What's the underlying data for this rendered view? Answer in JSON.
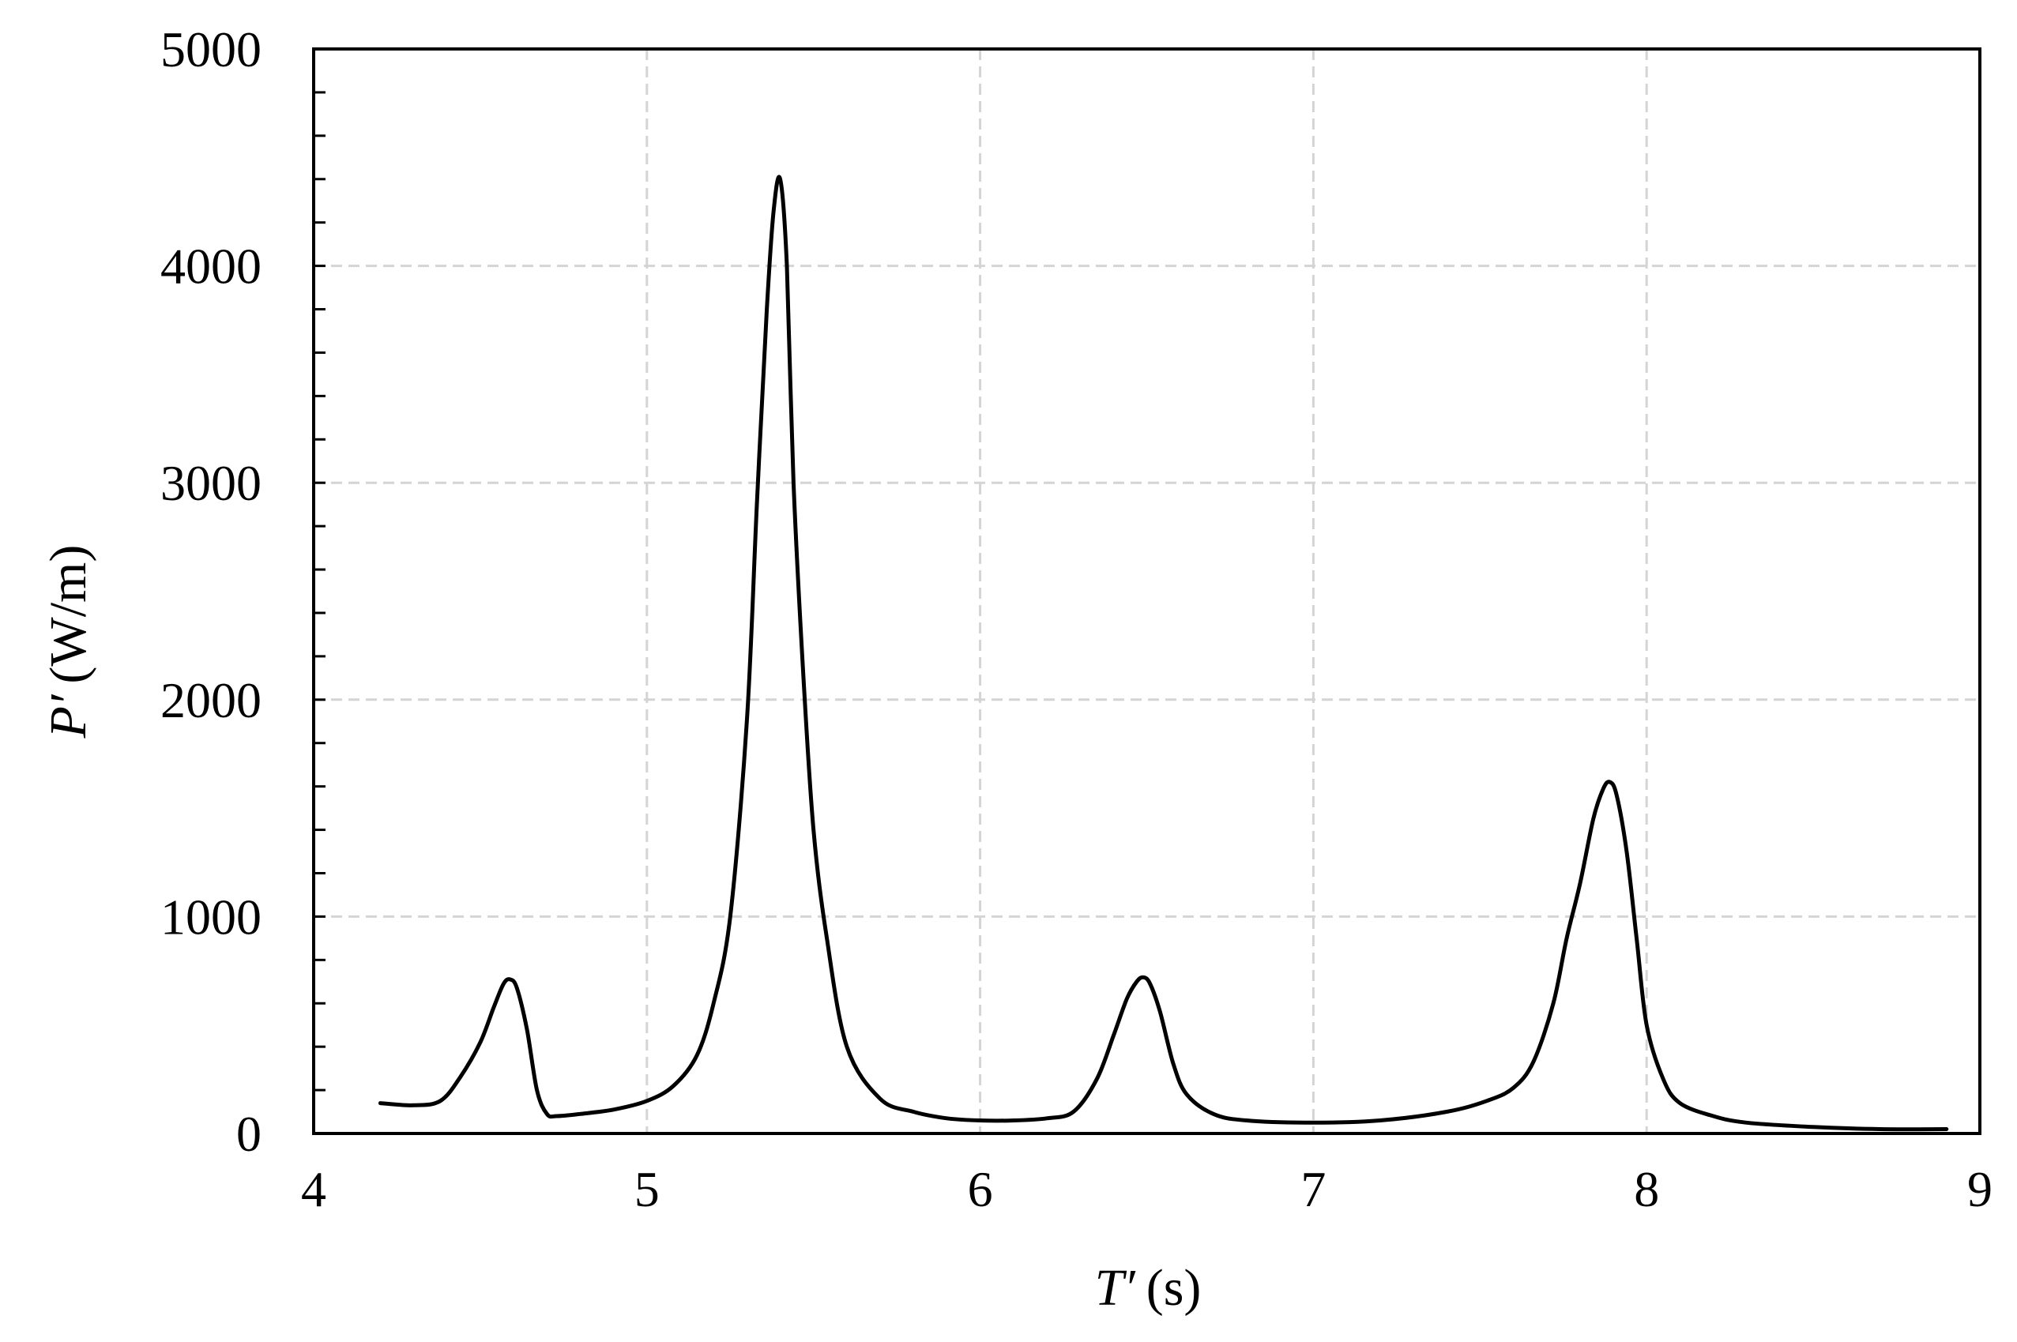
{
  "chart_data": {
    "type": "line",
    "title": "",
    "xlabel": {
      "symbol": "T′",
      "unit": "(s)"
    },
    "ylabel": {
      "symbol": "P′",
      "unit": "(W/m)"
    },
    "xlim": [
      4,
      9
    ],
    "ylim": [
      0,
      5000
    ],
    "x_ticks": [
      4,
      5,
      6,
      7,
      8,
      9
    ],
    "x_tick_labels": [
      "4",
      "5",
      "6",
      "7",
      "8",
      "9"
    ],
    "y_ticks": [
      0,
      1000,
      2000,
      3000,
      4000,
      5000
    ],
    "y_tick_labels": [
      "0",
      "1000",
      "2000",
      "3000",
      "4000",
      "5000"
    ],
    "y_minor_step": 200,
    "grid": true,
    "legend": "none",
    "series": [
      {
        "color": "#000000",
        "x": [
          4.2,
          4.3,
          4.38,
          4.44,
          4.5,
          4.54,
          4.57,
          4.59,
          4.61,
          4.64,
          4.67,
          4.7,
          4.73,
          4.8,
          4.9,
          5.0,
          5.08,
          5.15,
          5.2,
          5.25,
          5.3,
          5.33,
          5.36,
          5.38,
          5.4,
          5.42,
          5.44,
          5.47,
          5.5,
          5.54,
          5.6,
          5.7,
          5.8,
          5.9,
          6.0,
          6.1,
          6.2,
          6.28,
          6.35,
          6.4,
          6.44,
          6.47,
          6.49,
          6.51,
          6.54,
          6.58,
          6.62,
          6.7,
          6.8,
          7.0,
          7.2,
          7.4,
          7.52,
          7.6,
          7.66,
          7.72,
          7.76,
          7.8,
          7.84,
          7.87,
          7.89,
          7.91,
          7.94,
          7.97,
          8.0,
          8.05,
          8.1,
          8.2,
          8.3,
          8.5,
          8.7,
          8.9
        ],
        "y": [
          140,
          130,
          150,
          260,
          420,
          580,
          690,
          710,
          670,
          480,
          200,
          90,
          80,
          90,
          110,
          150,
          220,
          360,
          600,
          1000,
          1900,
          2900,
          3800,
          4250,
          4400,
          4000,
          3000,
          2100,
          1400,
          900,
          400,
          160,
          100,
          70,
          60,
          60,
          70,
          100,
          250,
          450,
          620,
          700,
          720,
          690,
          560,
          320,
          180,
          90,
          60,
          50,
          60,
          100,
          150,
          210,
          330,
          600,
          900,
          1150,
          1450,
          1590,
          1620,
          1560,
          1300,
          900,
          500,
          250,
          140,
          80,
          50,
          30,
          20,
          20
        ]
      }
    ]
  }
}
